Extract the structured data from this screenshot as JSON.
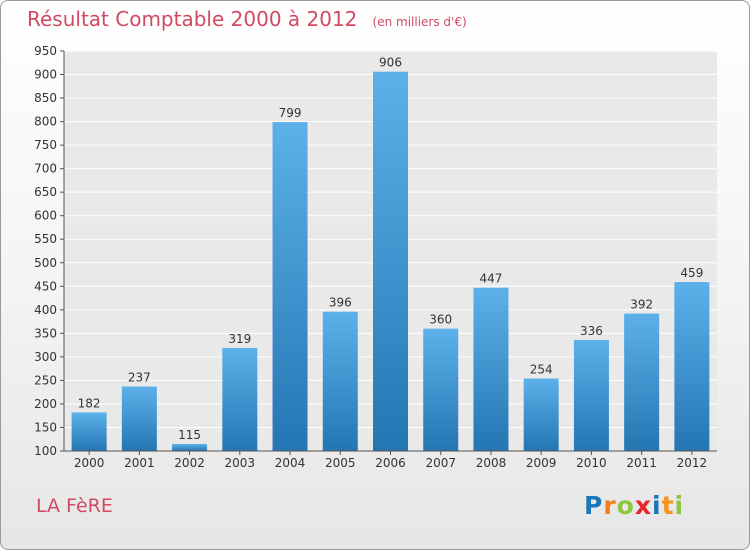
{
  "header": {
    "title": "Résultat Comptable 2000 à 2012",
    "unit": "(en milliers d'€)"
  },
  "commune": "LA FèRE",
  "logo": {
    "text": "Proxiti",
    "letter_colors": [
      "#1a75bb",
      "#f07f1c",
      "#8dc63f",
      "#e8262a",
      "#1a75bb",
      "#f7941d",
      "#8dc63f"
    ]
  },
  "colors": {
    "title": "#d04a62",
    "bar_top": "#5db1ea",
    "bar_bottom": "#2476b2",
    "grid": "#ffffff"
  },
  "chart_data": {
    "type": "bar",
    "title": "Résultat Comptable 2000 à 2012",
    "ylabel": "(en milliers d'€)",
    "xlabel": "",
    "categories": [
      "2000",
      "2001",
      "2002",
      "2003",
      "2004",
      "2005",
      "2006",
      "2007",
      "2008",
      "2009",
      "2010",
      "2011",
      "2012"
    ],
    "values": [
      182,
      237,
      115,
      319,
      799,
      396,
      906,
      360,
      447,
      254,
      336,
      392,
      459
    ],
    "ylim": [
      100,
      950
    ],
    "yticks": [
      100,
      150,
      200,
      250,
      300,
      350,
      400,
      450,
      500,
      550,
      600,
      650,
      700,
      750,
      800,
      850,
      900,
      950
    ],
    "grid": true,
    "data_labels": true
  }
}
